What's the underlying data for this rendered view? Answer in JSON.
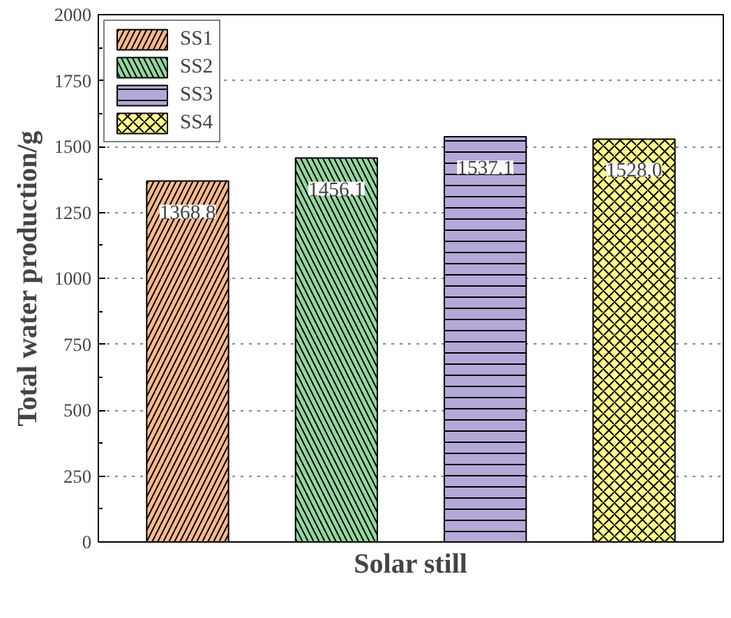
{
  "chart_data": {
    "type": "bar",
    "xlabel": "Solar still",
    "ylabel": "Total water production/g",
    "categories": [
      null,
      null,
      null,
      null
    ],
    "series": [
      {
        "name": "SS1",
        "color": "#f9b98c",
        "values": [
          1368.8,
          null,
          null,
          null
        ]
      },
      {
        "name": "SS2",
        "color": "#92d89c",
        "values": [
          null,
          1456.1,
          null,
          null
        ]
      },
      {
        "name": "SS3",
        "color": "#b5a8d8",
        "values": [
          null,
          null,
          1537.1,
          null
        ]
      },
      {
        "name": "SS4",
        "color": "#ffff85",
        "values": [
          null,
          null,
          null,
          1528.0
        ]
      }
    ],
    "value_labels": [
      "1368.8",
      "1456.1",
      "1537.1",
      "1528.0"
    ],
    "ylim": [
      0,
      2000
    ],
    "yticks": [
      0,
      250,
      500,
      750,
      1000,
      1250,
      1500,
      1750,
      2000
    ],
    "grid": "y",
    "legend": "top left"
  }
}
